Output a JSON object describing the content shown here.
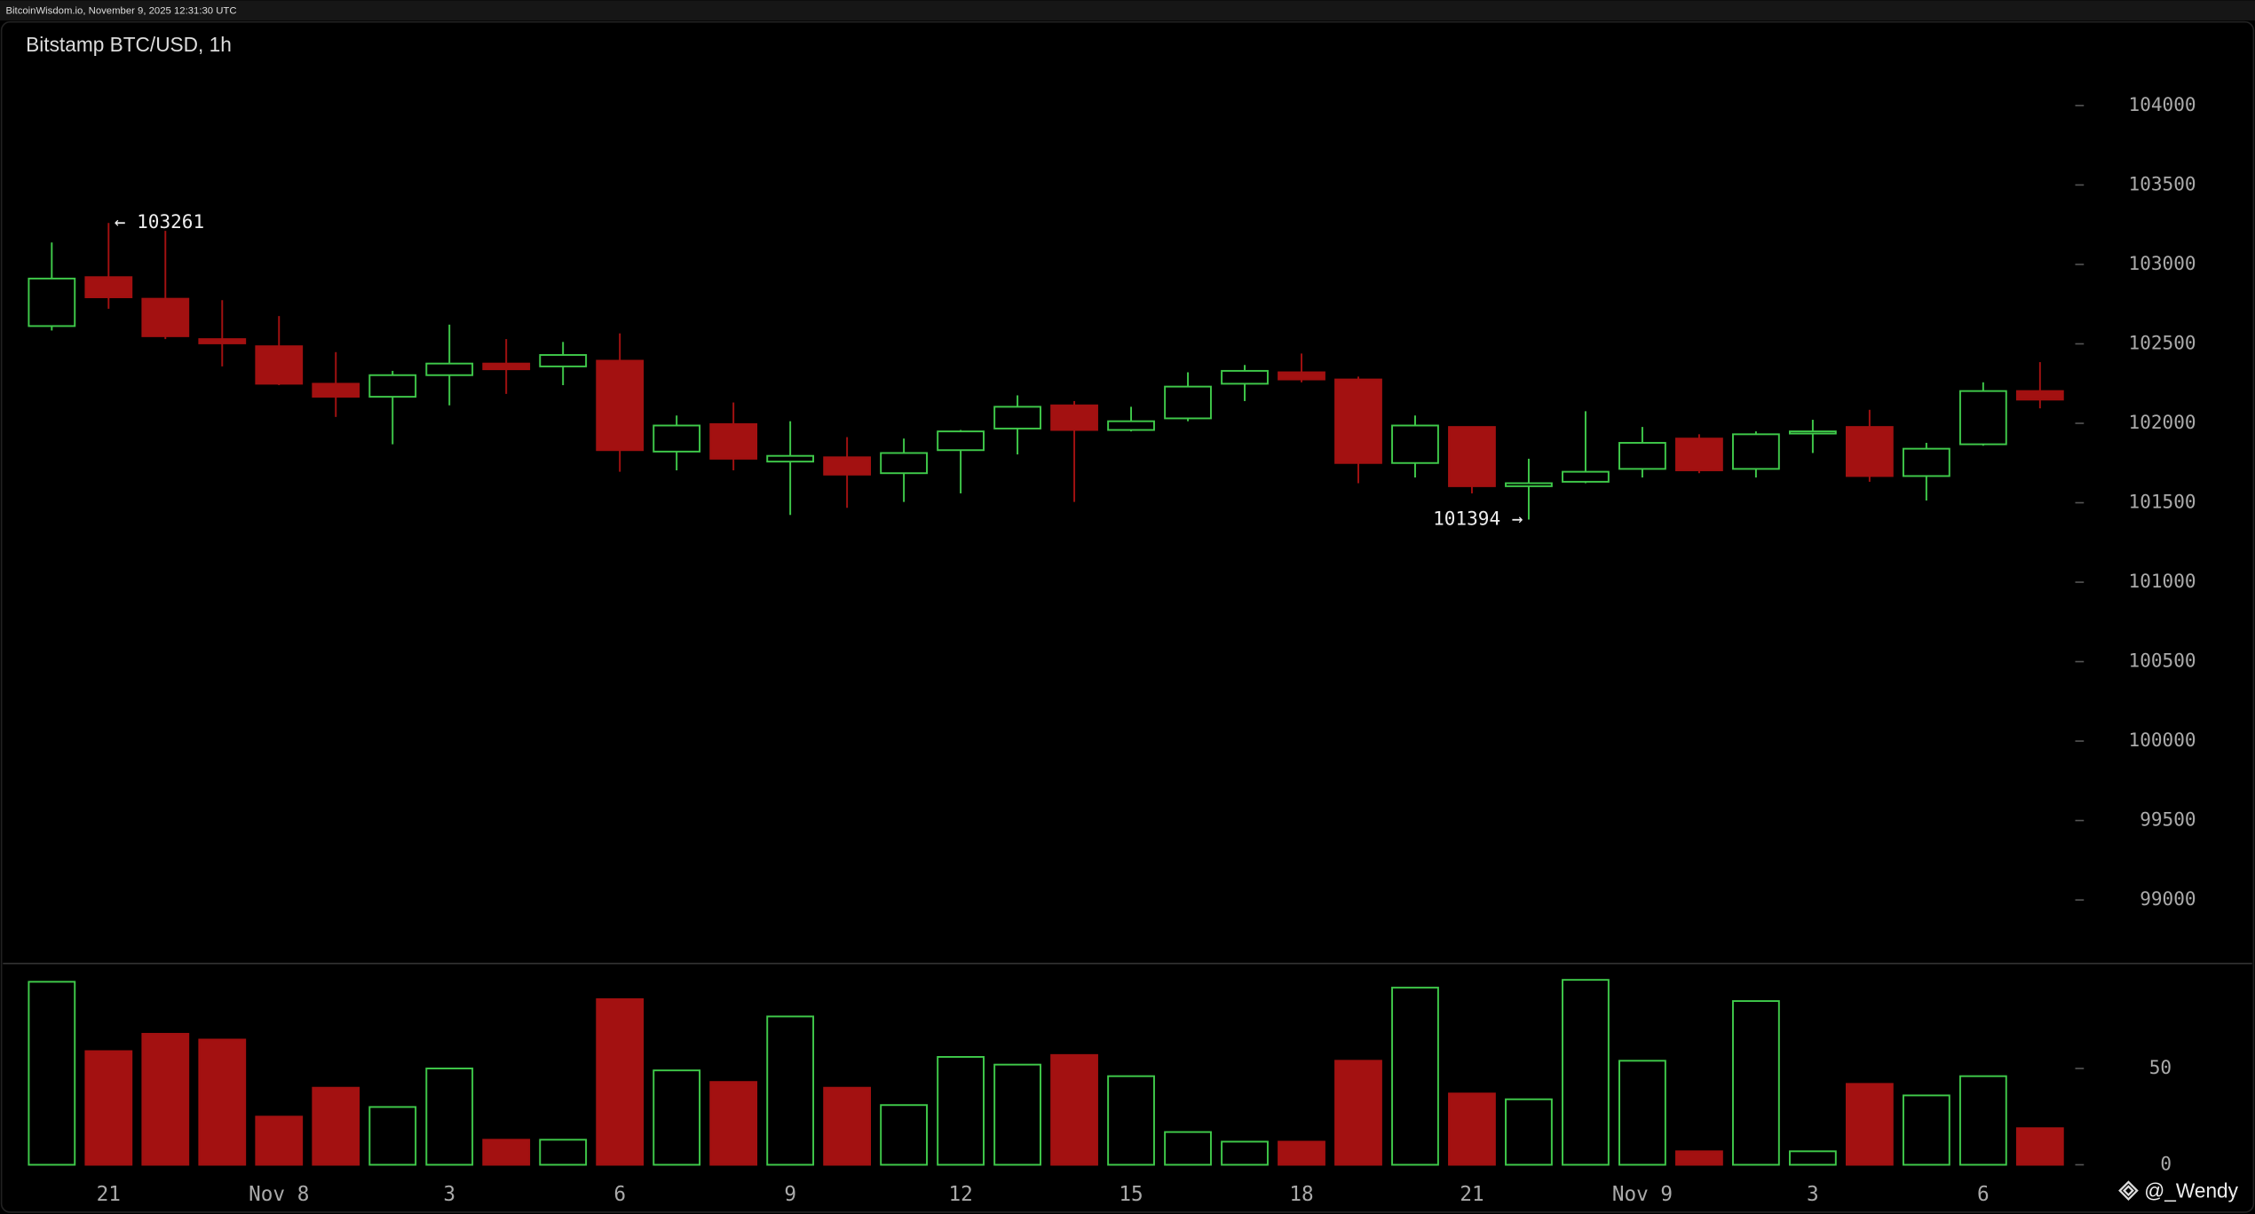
{
  "header": {
    "source": "BitcoinWisdom.io, November 9, 2025 12:31:30 UTC",
    "watermark": "@_Wendy"
  },
  "chart_data": [
    {
      "type": "candlestick",
      "title": "Bitstamp BTC/USD, 1h",
      "categories": [
        null,
        "21",
        null,
        null,
        "Nov 8",
        null,
        null,
        "3",
        null,
        null,
        "6",
        null,
        null,
        "9",
        null,
        null,
        "12",
        null,
        null,
        "15",
        null,
        null,
        "18",
        null,
        null,
        "21",
        null,
        null,
        "Nov 9",
        null,
        null,
        "3",
        null,
        null,
        "6",
        null
      ],
      "open": [
        102612,
        102920,
        102784,
        102530,
        102485,
        102249,
        102167,
        102303,
        102376,
        102358,
        102394,
        101822,
        101995,
        101759,
        101786,
        101686,
        101831,
        101967,
        102113,
        101958,
        102031,
        102249,
        102321,
        102276,
        101750,
        101977,
        101604,
        101632,
        101713,
        101904,
        101713,
        101940,
        101977,
        101668,
        101868,
        102203
      ],
      "high": [
        103138,
        103261,
        103211,
        102775,
        102675,
        102448,
        102330,
        102621,
        102530,
        102512,
        102566,
        102049,
        102131,
        102013,
        101913,
        101904,
        101958,
        102176,
        102140,
        102104,
        102321,
        102367,
        102439,
        102294,
        102049,
        101977,
        101777,
        102076,
        101977,
        101931,
        101949,
        102022,
        102085,
        101877,
        102258,
        102385
      ],
      "low": [
        102584,
        102721,
        102530,
        102358,
        102240,
        102040,
        101868,
        102113,
        102185,
        102240,
        101695,
        101704,
        101704,
        101423,
        101468,
        101505,
        101559,
        101804,
        101505,
        101949,
        102013,
        102140,
        102258,
        101623,
        101659,
        101559,
        101394,
        101623,
        101659,
        101686,
        101659,
        101813,
        101632,
        101514,
        101859,
        102094
      ],
      "close": [
        102911,
        102793,
        102548,
        102503,
        102249,
        102167,
        102303,
        102376,
        102340,
        102430,
        101831,
        101986,
        101777,
        101795,
        101677,
        101813,
        101949,
        102104,
        101958,
        102013,
        102231,
        102330,
        102276,
        101750,
        101986,
        101604,
        101623,
        101695,
        101877,
        101704,
        101931,
        101949,
        101668,
        101840,
        102203,
        102149
      ],
      "up_color": "#3fc94a",
      "down_color": "#a31111",
      "annotations": [
        "← 103261",
        "101394 →"
      ],
      "ylim": [
        98600,
        104300
      ],
      "yticks": [
        99000,
        99500,
        100000,
        100500,
        101000,
        101500,
        102000,
        102500,
        103000,
        103500,
        104000
      ]
    },
    {
      "type": "bar",
      "values": [
        95,
        59,
        68,
        65,
        25,
        40,
        30,
        50,
        13,
        13,
        86,
        49,
        43,
        77,
        40,
        31,
        56,
        52,
        57,
        46,
        17,
        12,
        12,
        54,
        92,
        37,
        34,
        96,
        54,
        7,
        85,
        7,
        42,
        36,
        46,
        19
      ],
      "ylim": [
        0,
        103
      ],
      "yticks": [
        0,
        50
      ]
    }
  ]
}
